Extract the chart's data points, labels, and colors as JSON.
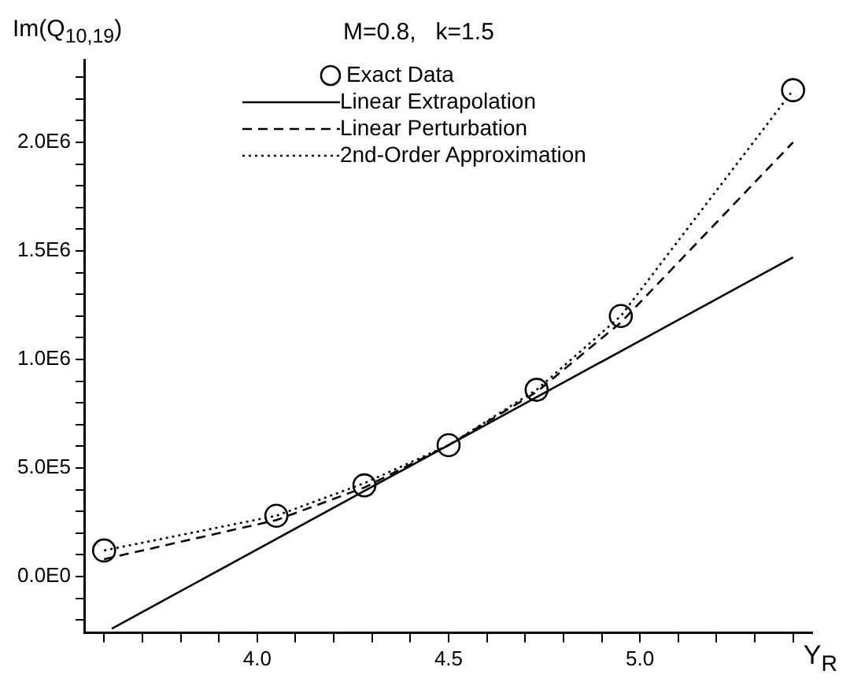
{
  "chart_data": {
    "type": "line",
    "title": "M=0.8,   k=1.5",
    "xlabel": "Y$_{R}$",
    "ylabel": "Im(Q$_{10,19}$)",
    "xlim": [
      3.55,
      5.45
    ],
    "xticks": [
      {
        "value": 3.6,
        "label": null
      },
      {
        "value": 3.7,
        "label": null
      },
      {
        "value": 3.8,
        "label": null
      },
      {
        "value": 3.9,
        "label": null
      },
      {
        "value": 4.0,
        "label": "4.0"
      },
      {
        "value": 4.1,
        "label": null
      },
      {
        "value": 4.2,
        "label": null
      },
      {
        "value": 4.3,
        "label": null
      },
      {
        "value": 4.4,
        "label": null
      },
      {
        "value": 4.5,
        "label": "4.5"
      },
      {
        "value": 4.6,
        "label": null
      },
      {
        "value": 4.7,
        "label": null
      },
      {
        "value": 4.8,
        "label": null
      },
      {
        "value": 4.9,
        "label": null
      },
      {
        "value": 5.0,
        "label": "5.0"
      },
      {
        "value": 5.1,
        "label": null
      },
      {
        "value": 5.2,
        "label": null
      },
      {
        "value": 5.3,
        "label": null
      },
      {
        "value": 5.4,
        "label": null
      }
    ],
    "ylim": [
      -260000,
      2380000
    ],
    "yticks": [
      {
        "value": -200000,
        "label": null
      },
      {
        "value": -100000,
        "label": null
      },
      {
        "value": 0,
        "label": "0.0E0"
      },
      {
        "value": 100000,
        "label": null
      },
      {
        "value": 200000,
        "label": null
      },
      {
        "value": 300000,
        "label": null
      },
      {
        "value": 400000,
        "label": null
      },
      {
        "value": 500000,
        "label": "5.0E5"
      },
      {
        "value": 600000,
        "label": null
      },
      {
        "value": 700000,
        "label": null
      },
      {
        "value": 800000,
        "label": null
      },
      {
        "value": 900000,
        "label": null
      },
      {
        "value": 1000000,
        "label": "1.0E6"
      },
      {
        "value": 1100000,
        "label": null
      },
      {
        "value": 1200000,
        "label": null
      },
      {
        "value": 1300000,
        "label": null
      },
      {
        "value": 1400000,
        "label": null
      },
      {
        "value": 1500000,
        "label": "1.5E6"
      },
      {
        "value": 1600000,
        "label": null
      },
      {
        "value": 1700000,
        "label": null
      },
      {
        "value": 1800000,
        "label": null
      },
      {
        "value": 1900000,
        "label": null
      },
      {
        "value": 2000000,
        "label": "2.0E6"
      },
      {
        "value": 2100000,
        "label": null
      },
      {
        "value": 2200000,
        "label": null
      },
      {
        "value": 2300000,
        "label": null
      }
    ],
    "grid": false,
    "legend": "top left",
    "series": [
      {
        "type": "scatter",
        "name": "Exact Data",
        "color": "#000000",
        "marker": "circle",
        "x": [
          3.6,
          4.05,
          4.28,
          4.5,
          4.73,
          4.95,
          5.4
        ],
        "values": [
          120000,
          280000,
          420000,
          605000,
          860000,
          1200000,
          2240000
        ]
      },
      {
        "type": "line",
        "name": "Linear Extrapolation",
        "color": "#000000",
        "marker": "none",
        "line_style": "solid",
        "x": [
          3.62,
          5.4
        ],
        "values": [
          -240000,
          1470000
        ]
      },
      {
        "type": "line",
        "name": "Linear Perturbation",
        "color": "#000000",
        "marker": "none",
        "line_style": "dashed",
        "x": [
          3.6,
          4.05,
          4.28,
          4.5,
          4.73,
          4.95,
          5.4
        ],
        "values": [
          80000,
          260000,
          410000,
          605000,
          850000,
          1170000,
          2000000
        ]
      },
      {
        "type": "line",
        "name": "2nd-Order Approximation",
        "color": "#000000",
        "marker": "none",
        "line_style": "dotted",
        "x": [
          3.6,
          4.05,
          4.28,
          4.5,
          4.73,
          4.95,
          5.4
        ],
        "values": [
          120000,
          280000,
          430000,
          605000,
          860000,
          1200000,
          2240000
        ]
      }
    ]
  }
}
